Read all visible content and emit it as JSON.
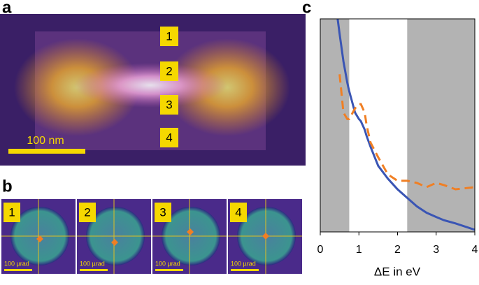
{
  "panel_a": {
    "letter": "a",
    "labels": [
      "1",
      "2",
      "3",
      "4"
    ],
    "scale_bar": "100 nm"
  },
  "panel_b": {
    "letter": "b",
    "labels": [
      "1",
      "2",
      "3",
      "4"
    ],
    "scale_bars": [
      "100 µrad",
      "100 µrad",
      "100 µrad",
      "100 µrad"
    ]
  },
  "chart_data": {
    "type": "line",
    "panel_label": "c",
    "x_label": "ΔE in eV",
    "x": [
      0.45,
      0.5,
      0.6,
      0.7,
      0.75,
      0.9,
      1.0,
      1.05,
      1.15,
      1.2,
      1.3,
      1.5,
      1.75,
      2,
      2.25,
      2.5,
      2.75,
      3,
      3.2,
      3.5,
      4
    ],
    "series": [
      {
        "color": "#3a55b4",
        "dashed": false,
        "values": [
          1.0,
          0.93,
          0.8,
          0.7,
          0.66,
          0.56,
          0.53,
          0.52,
          0.48,
          0.45,
          0.4,
          0.31,
          0.25,
          0.2,
          0.16,
          0.12,
          0.09,
          0.07,
          0.055,
          0.04,
          0.01
        ]
      },
      {
        "color": "#f07f24",
        "dashed": true,
        "values": [
          null,
          0.74,
          0.56,
          0.53,
          0.53,
          0.58,
          0.6,
          0.6,
          0.56,
          0.5,
          0.42,
          0.35,
          0.27,
          0.24,
          0.24,
          0.23,
          0.21,
          0.23,
          0.22,
          0.2,
          0.21
        ]
      }
    ],
    "shaded_regions": [
      [
        0,
        0.75
      ],
      [
        2.25,
        4
      ]
    ],
    "shade_color": "#b3b3b3",
    "xlim": [
      0,
      4
    ],
    "ylim": [
      0,
      1
    ],
    "xticks": [
      0,
      1,
      2,
      3,
      4
    ]
  }
}
